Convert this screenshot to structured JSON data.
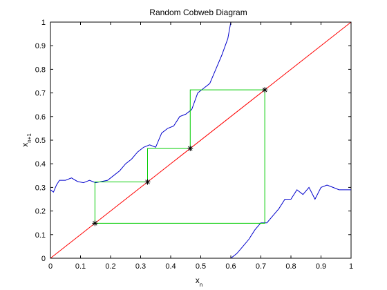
{
  "chart_data": {
    "type": "line",
    "title": "Random Cobweb Diagram",
    "xlabel": {
      "base": "x",
      "sub": "n"
    },
    "ylabel": {
      "base": "x",
      "sub": "n+1"
    },
    "xlim": [
      0,
      1
    ],
    "ylim": [
      0,
      1
    ],
    "grid": false,
    "xticks": [
      0,
      0.1,
      0.2,
      0.3,
      0.4,
      0.5,
      0.6,
      0.7,
      0.8,
      0.9,
      1
    ],
    "xtick_labels": [
      "0",
      "0.1",
      "0.2",
      "0.3",
      "0.4",
      "0.5",
      "0.6",
      "0.7",
      "0.8",
      "0.9",
      "1"
    ],
    "yticks": [
      0,
      0.1,
      0.2,
      0.3,
      0.4,
      0.5,
      0.6,
      0.7,
      0.8,
      0.9,
      1
    ],
    "ytick_labels": [
      "0",
      "0.1",
      "0.2",
      "0.3",
      "0.4",
      "0.5",
      "0.6",
      "0.7",
      "0.8",
      "0.9",
      "1"
    ],
    "series": [
      {
        "kind": "map-left",
        "color": "#0000cc",
        "x": [
          0,
          0.01,
          0.02,
          0.03,
          0.05,
          0.07,
          0.09,
          0.11,
          0.13,
          0.15,
          0.17,
          0.19,
          0.21,
          0.23,
          0.25,
          0.27,
          0.29,
          0.31,
          0.33,
          0.35,
          0.37,
          0.39,
          0.41,
          0.43,
          0.45,
          0.47,
          0.49,
          0.51,
          0.53,
          0.55,
          0.57,
          0.59,
          0.6
        ],
        "y": [
          0.29,
          0.28,
          0.31,
          0.33,
          0.33,
          0.34,
          0.325,
          0.32,
          0.33,
          0.32,
          0.325,
          0.33,
          0.35,
          0.37,
          0.4,
          0.42,
          0.45,
          0.47,
          0.48,
          0.47,
          0.53,
          0.55,
          0.56,
          0.6,
          0.61,
          0.63,
          0.7,
          0.72,
          0.74,
          0.8,
          0.86,
          0.93,
          1.0
        ]
      },
      {
        "kind": "map-right",
        "color": "#0000cc",
        "x": [
          0.6,
          0.62,
          0.64,
          0.66,
          0.68,
          0.7,
          0.72,
          0.74,
          0.76,
          0.78,
          0.8,
          0.82,
          0.84,
          0.86,
          0.88,
          0.9,
          0.92,
          0.94,
          0.96,
          0.98,
          1.0
        ],
        "y": [
          0.0,
          0.02,
          0.05,
          0.08,
          0.12,
          0.15,
          0.15,
          0.18,
          0.21,
          0.25,
          0.25,
          0.29,
          0.27,
          0.3,
          0.25,
          0.3,
          0.31,
          0.3,
          0.29,
          0.29,
          0.29
        ]
      },
      {
        "kind": "diagonal",
        "color": "#ff0000",
        "x": [
          0,
          1
        ],
        "y": [
          0,
          1
        ]
      },
      {
        "kind": "cobweb",
        "color": "#00cc00",
        "x": [
          0.148,
          0.148,
          0.323,
          0.323,
          0.465,
          0.465,
          0.713,
          0.713,
          0.148
        ],
        "y": [
          0.148,
          0.323,
          0.323,
          0.465,
          0.465,
          0.713,
          0.713,
          0.148,
          0.148
        ]
      }
    ],
    "points": {
      "marker": "*",
      "color": "#000000",
      "x": [
        0.148,
        0.323,
        0.465,
        0.713
      ],
      "y": [
        0.148,
        0.323,
        0.465,
        0.713
      ]
    }
  }
}
